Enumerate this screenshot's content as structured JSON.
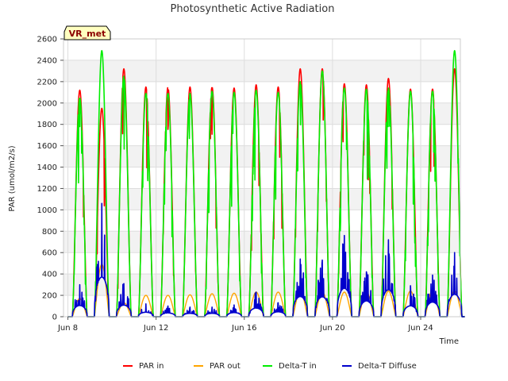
{
  "chart_data": {
    "type": "line",
    "title": "Photosynthetic Active Radiation",
    "xlabel": "Time",
    "ylabel": "PAR (umol/m2/s)",
    "badge": "VR_met",
    "xlim": [
      7.8,
      25.8
    ],
    "ylim": [
      0,
      2600
    ],
    "yticks": [
      0,
      200,
      400,
      600,
      800,
      1000,
      1200,
      1400,
      1600,
      1800,
      2000,
      2200,
      2400,
      2600
    ],
    "xticks": [
      {
        "value": 8,
        "label": "Jun 8"
      },
      {
        "value": 12,
        "label": "Jun 12"
      },
      {
        "value": 16,
        "label": "Jun 16"
      },
      {
        "value": 20,
        "label": "Jun 20"
      },
      {
        "value": 24,
        "label": "Jun 24"
      }
    ],
    "grid": true,
    "legend_position": "bottom",
    "days": [
      8,
      9,
      10,
      11,
      12,
      13,
      14,
      15,
      16,
      17,
      18,
      19,
      20,
      21,
      22,
      23,
      24,
      25
    ],
    "series": [
      {
        "name": "PAR in",
        "color": "#ff0000",
        "daily_peak": [
          2120,
          1950,
          2320,
          2150,
          2150,
          2150,
          2150,
          2140,
          2170,
          2150,
          2320,
          2320,
          2180,
          2170,
          2230,
          2130,
          2130,
          2320
        ]
      },
      {
        "name": "PAR out",
        "color": "#ffa500",
        "daily_peak": [
          170,
          490,
          130,
          200,
          200,
          205,
          215,
          220,
          230,
          230,
          240,
          230,
          230,
          235,
          240,
          240,
          245,
          240
        ]
      },
      {
        "name": "Delta-T in",
        "color": "#00ee00",
        "daily_peak": [
          2050,
          2490,
          2250,
          2090,
          2090,
          2090,
          2110,
          2100,
          2120,
          2100,
          2200,
          2300,
          2140,
          2130,
          2140,
          2110,
          2110,
          2490
        ]
      },
      {
        "name": "Delta-T Diffuse",
        "color": "#0000cc",
        "daily_peak": [
          300,
          1060,
          310,
          120,
          100,
          90,
          90,
          110,
          230,
          130,
          540,
          530,
          760,
          420,
          720,
          290,
          390,
          600
        ]
      }
    ]
  }
}
